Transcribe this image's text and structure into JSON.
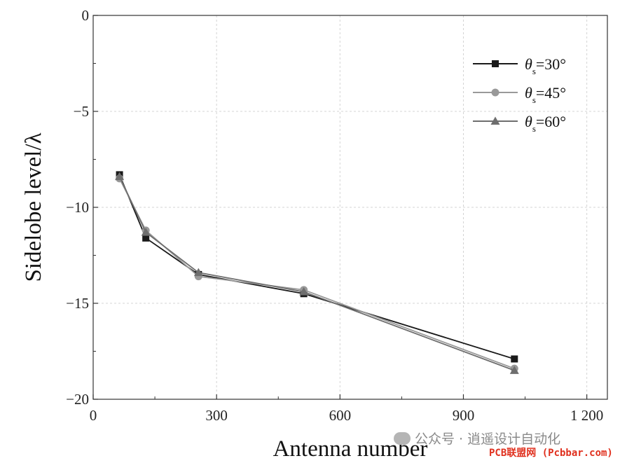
{
  "chart_data": {
    "type": "line",
    "title": "",
    "xlabel": "Antenna number",
    "ylabel": "Sidelobe level/λ",
    "xlim": [
      0,
      1250
    ],
    "ylim": [
      -20,
      0
    ],
    "xticks": [
      0,
      300,
      600,
      900,
      1200
    ],
    "xtick_labels": [
      "0",
      "300",
      "600",
      "900",
      "1 200"
    ],
    "yticks": [
      0,
      -5,
      -10,
      -15,
      -20
    ],
    "ytick_labels": [
      "0",
      "−5",
      "−10",
      "−15",
      "−20"
    ],
    "grid": true,
    "legend_position": "top-right",
    "x": [
      64,
      128,
      256,
      512,
      1024
    ],
    "series": [
      {
        "name": "θs=30°",
        "theta": "θ",
        "sub": "s",
        "value": "=30°",
        "marker": "square",
        "color": "#1a1a1a",
        "values": [
          -8.3,
          -11.6,
          -13.5,
          -14.5,
          -17.9
        ]
      },
      {
        "name": "θs=45°",
        "theta": "θ",
        "sub": "s",
        "value": "=45°",
        "marker": "circle",
        "color": "#999999",
        "values": [
          -8.5,
          -11.2,
          -13.6,
          -14.3,
          -18.4
        ]
      },
      {
        "name": "θs=60°",
        "theta": "θ",
        "sub": "s",
        "value": "=60°",
        "marker": "triangle",
        "color": "#6e6e6e",
        "values": [
          -8.4,
          -11.3,
          -13.4,
          -14.4,
          -18.5
        ]
      }
    ]
  },
  "watermark": {
    "text": "公众号 · 逍遥设计自动化",
    "icon": "wechat-icon"
  },
  "site_badge": "PCB联盟网 (Pcbbar.com)"
}
